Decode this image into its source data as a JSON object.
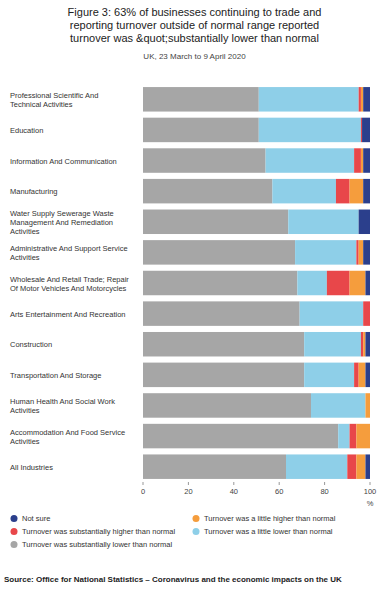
{
  "chart_data": {
    "type": "bar",
    "orientation": "horizontal",
    "stacked": true,
    "title": "Figure 3: 63% of businesses continuing to trade and reporting turnover outside of normal range reported turnover was &quot;substantially lower than normal",
    "subtitle": "UK, 23 March to 9 April 2020",
    "x_label": "%",
    "source": "Source: Office for National Statistics – Coronavirus and the economic impacts on the UK",
    "categories": [
      "Professional Scientific And Technical Activities",
      "Education",
      "Information And Communication",
      "Manufacturing",
      "Water Supply Sewerage Waste Management And Remediation Activities",
      "Administrative And Support Service Activities",
      "Wholesale And Retail Trade; Repair Of Motor Vehicles And Motorcycles",
      "Arts Entertainment And Recreation",
      "Construction",
      "Transportation And Storage",
      "Human Health And Social Work Activities",
      "Accommodation And Food Service Activities",
      "All Industries"
    ],
    "series": [
      {
        "name": "Turnover was substantially lower than normal",
        "color": "#a6a6a6",
        "values": [
          51,
          51,
          54,
          57,
          64,
          67,
          68,
          69,
          71,
          71,
          74,
          86,
          63
        ]
      },
      {
        "name": "Turnover was a little lower than normal",
        "color": "#8ecfe8",
        "values": [
          44,
          45,
          39,
          28,
          31,
          27,
          13,
          28,
          25,
          22,
          24,
          5,
          27
        ]
      },
      {
        "name": "Turnover was substantially higher than normal",
        "color": "#e8474a",
        "values": [
          1,
          0.5,
          3,
          6,
          0,
          1,
          10,
          3,
          1,
          2,
          0,
          3,
          4
        ]
      },
      {
        "name": "Turnover was a little higher than normal",
        "color": "#f59d3d",
        "values": [
          1,
          0,
          1,
          6,
          0,
          2,
          7,
          0,
          1,
          3,
          2,
          6,
          4
        ]
      },
      {
        "name": "Not sure",
        "color": "#2b3f8c",
        "values": [
          3,
          3.5,
          3,
          3,
          5,
          3,
          2,
          0,
          2,
          2,
          0,
          0,
          2
        ]
      }
    ],
    "xlim": [
      0,
      100
    ],
    "xticks": [
      0,
      20,
      40,
      60,
      80,
      100
    ],
    "grid": false,
    "legend": "bottom"
  }
}
